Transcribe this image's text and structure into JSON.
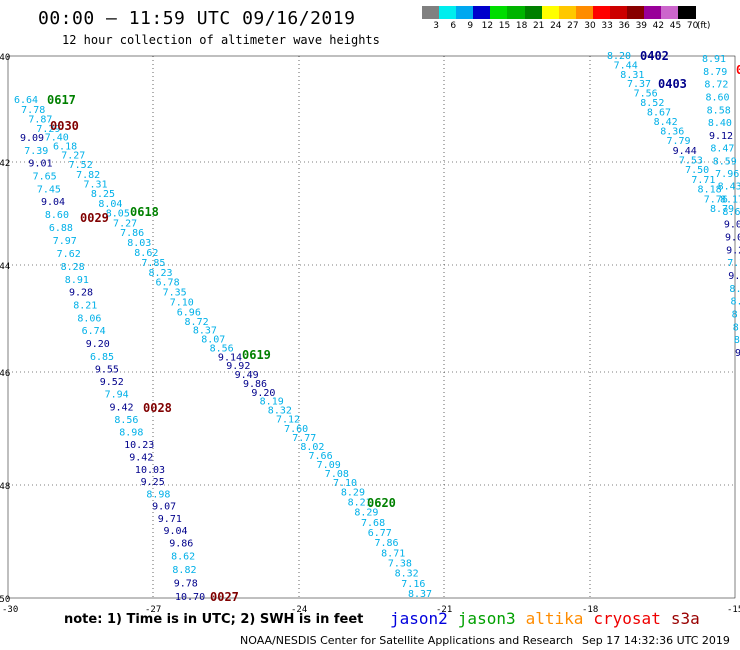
{
  "header": {
    "title": "00:00 – 11:59 UTC 09/16/2019",
    "subtitle": "12 hour collection of altimeter wave heights"
  },
  "legend": {
    "unit": "(ft)",
    "bins": [
      {
        "label": "3",
        "color": "#808080"
      },
      {
        "label": "6",
        "color": "#00eeee"
      },
      {
        "label": "9",
        "color": "#00a8f0"
      },
      {
        "label": "12",
        "color": "#0000cc"
      },
      {
        "label": "15",
        "color": "#00dd00"
      },
      {
        "label": "18",
        "color": "#00b400"
      },
      {
        "label": "21",
        "color": "#008000"
      },
      {
        "label": "24",
        "color": "#ffff00"
      },
      {
        "label": "27",
        "color": "#ffc800"
      },
      {
        "label": "30",
        "color": "#ff8c00"
      },
      {
        "label": "33",
        "color": "#ff0000"
      },
      {
        "label": "36",
        "color": "#cc0000"
      },
      {
        "label": "39",
        "color": "#880000"
      },
      {
        "label": "42",
        "color": "#990099"
      },
      {
        "label": "45",
        "color": "#cc66cc"
      },
      {
        "label": "70",
        "color": "#000000"
      }
    ]
  },
  "axes": {
    "lon_labels": [
      "-30",
      "-27",
      "-24",
      "-21",
      "-18",
      "-15"
    ],
    "lat_labels": [
      "-40",
      "-42",
      "-44",
      "-46",
      "-48",
      "-50"
    ]
  },
  "colors": {
    "cyan": "#00b0e8",
    "navy": "#00008b",
    "green": "#008000",
    "maroon": "#800000",
    "red": "#ff0000"
  },
  "tracks": {
    "track_a": {
      "color": "cyan",
      "values": [
        "6.64",
        "7.78",
        "7.87",
        "7.29",
        "7.40",
        "6.18",
        "7.27",
        "7.52",
        "7.82",
        "7.31",
        "8.25",
        "8.04",
        "8.05",
        "7.27",
        "7.86",
        "8.03",
        "8.62",
        "7.85",
        "8.23",
        "6.78",
        "7.35",
        "7.10",
        "6.96",
        "8.72",
        "8.37",
        "8.07",
        "8.56",
        "9.14",
        "9.92",
        "9.49",
        "9.86",
        "9.20",
        "8.19",
        "8.32",
        "7.12",
        "7.60",
        "7.77",
        "8.02",
        "7.66",
        "7.09",
        "7.08",
        "7.10",
        "8.29",
        "8.21",
        "8.29",
        "7.68",
        "6.77",
        "7.86",
        "8.71",
        "7.38",
        "8.32",
        "7.16",
        "8.37"
      ]
    },
    "track_b": {
      "color": "cyan",
      "values": [
        "9.09",
        "7.39",
        "9.01",
        "7.65",
        "7.45",
        "9.04",
        "8.60",
        "6.88",
        "7.97",
        "7.62",
        "8.28",
        "8.91",
        "9.28",
        "8.21",
        "8.06",
        "6.74",
        "9.20",
        "6.85",
        "9.55",
        "9.52",
        "7.94",
        "9.42",
        "8.56",
        "8.98",
        "10.23",
        "9.42",
        "10.03",
        "9.25",
        "8.98",
        "9.07",
        "9.71",
        "9.04",
        "9.86",
        "8.62",
        "8.82",
        "9.78",
        "10.70"
      ]
    },
    "track_c": {
      "color": "cyan",
      "values": [
        "8.20",
        "7.44",
        "8.31",
        "7.37",
        "7.56",
        "8.52",
        "8.67",
        "8.42",
        "8.36",
        "7.79",
        "9.44",
        "7.53",
        "7.50",
        "7.71",
        "8.18",
        "7.76",
        "8.79"
      ]
    },
    "track_d": {
      "color": "cyan",
      "values": [
        "8.91",
        "8.79",
        "8.72",
        "8.60",
        "8.58",
        "8.40",
        "9.12",
        "8.47",
        "8.59",
        "7.96",
        "8.43",
        "8.17",
        "8.63",
        "9.09",
        "9.06",
        "9.25",
        "7.7",
        "9.0",
        "8.",
        "8.",
        "8.",
        "8.",
        "8.",
        "9."
      ]
    },
    "passes": [
      {
        "label": "0617",
        "color": "green"
      },
      {
        "label": "0030",
        "color": "maroon"
      },
      {
        "label": "0029",
        "color": "maroon"
      },
      {
        "label": "0618",
        "color": "green"
      },
      {
        "label": "0619",
        "color": "green"
      },
      {
        "label": "0028",
        "color": "maroon"
      },
      {
        "label": "0620",
        "color": "green"
      },
      {
        "label": "0027",
        "color": "maroon"
      },
      {
        "label": "0402",
        "color": "navy"
      },
      {
        "label": "0403",
        "color": "navy"
      },
      {
        "label": "0",
        "color": "red"
      }
    ]
  },
  "footer": {
    "note": "note: 1) Time is in UTC; 2) SWH is in feet",
    "satellites": [
      {
        "name": "jason2",
        "color": "#0000dd"
      },
      {
        "name": "jason3",
        "color": "#00a000"
      },
      {
        "name": "altika",
        "color": "#ff8c00"
      },
      {
        "name": "cryosat",
        "color": "#ee0000"
      },
      {
        "name": "s3a",
        "color": "#990000"
      }
    ],
    "credit": "NOAA/NESDIS Center for Satellite Applications and Research",
    "timestamp": "Sep 17 14:32:36 UTC 2019"
  }
}
